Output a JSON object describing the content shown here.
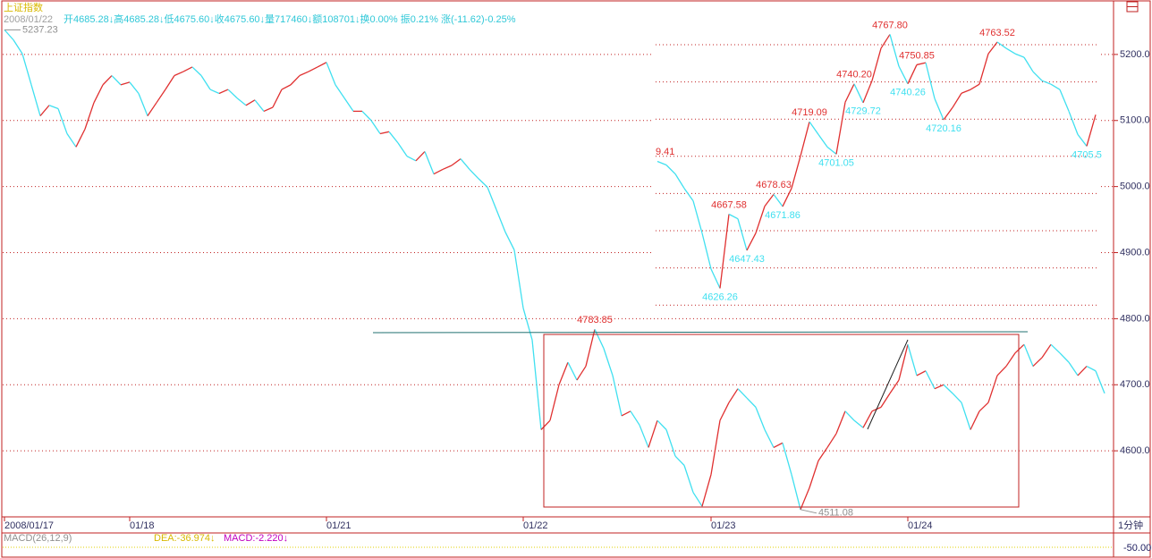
{
  "chart_data": [
    {
      "type": "line",
      "title": "上证指数",
      "header_date": "2008/01/22",
      "header_quote": "开4685.28↓高4685.28↓低4675.60↓收4675.60↓量717460↓额108701↓换0.00% 振0.21% 涨(-11.62)-0.25%",
      "period": "1分钟",
      "up_color": "#e03030",
      "down_color": "#40e0f0",
      "extreme_color": "#909090",
      "grid": true,
      "categories": [
        "2008/01/17",
        null,
        null,
        null,
        null,
        null,
        null,
        null,
        null,
        null,
        null,
        null,
        null,
        null,
        "01/18",
        null,
        null,
        null,
        null,
        null,
        null,
        null,
        null,
        null,
        null,
        null,
        null,
        null,
        null,
        null,
        null,
        null,
        null,
        null,
        null,
        null,
        "01/21",
        null,
        null,
        null,
        null,
        null,
        null,
        null,
        null,
        null,
        null,
        null,
        null,
        null,
        null,
        null,
        null,
        null,
        null,
        null,
        null,
        null,
        "01/22",
        null,
        null,
        null,
        null,
        null,
        null,
        null,
        null,
        null,
        null,
        null,
        null,
        null,
        null,
        null,
        null,
        null,
        null,
        null,
        null,
        "01/23",
        null,
        null,
        null,
        null,
        null,
        null,
        null,
        null,
        null,
        null,
        null,
        null,
        null,
        null,
        null,
        null,
        null,
        null,
        null,
        null,
        null,
        "01/24",
        null,
        null,
        null,
        null,
        null,
        null,
        null,
        null,
        null,
        null,
        null,
        null,
        null,
        null,
        null,
        null,
        null,
        null,
        null,
        null,
        null,
        null
      ],
      "values": [
        5237.23,
        5222,
        5201,
        5154,
        5107,
        5123,
        5118,
        5080,
        5060,
        5087,
        5127,
        5154,
        5168,
        5154,
        5158,
        5141,
        5107,
        5127,
        5147,
        5168,
        5174,
        5181,
        5168,
        5147,
        5141,
        5147,
        5134,
        5123,
        5131,
        5114,
        5120,
        5147,
        5154,
        5168,
        5174,
        5181,
        5188,
        5154,
        5134,
        5114,
        5114,
        5100,
        5080,
        5083,
        5066,
        5046,
        5039,
        5053,
        5019,
        5026,
        5032,
        5042,
        5026,
        5012,
        4999,
        4965,
        4931,
        4904,
        4816,
        4768,
        4632,
        4646,
        4700,
        4734,
        4707,
        4728,
        4783.85,
        4755,
        4714,
        4653,
        4660,
        4639,
        4605,
        4646,
        4632,
        4592,
        4578,
        4537,
        4516,
        4564,
        4646,
        4673,
        4694,
        4680,
        4666,
        4632,
        4605,
        4612,
        4564,
        4511.08,
        4544,
        4585,
        4605,
        4626,
        4660,
        4646,
        4635,
        4660,
        4666,
        4687,
        4707,
        4761,
        4714,
        4721,
        4694,
        4700,
        4687,
        4673,
        4632,
        4660,
        4673,
        4714,
        4728,
        4748,
        4761,
        4728,
        4741,
        4761,
        4748,
        4734,
        4714,
        4728,
        4721,
        4687
      ],
      "value_labels": [
        "5237.23",
        null,
        null,
        null,
        null,
        null,
        null,
        null,
        null,
        null,
        null,
        null,
        null,
        null,
        null,
        null,
        null,
        null,
        null,
        null,
        null,
        null,
        null,
        null,
        null,
        null,
        null,
        null,
        null,
        null,
        null,
        null,
        null,
        null,
        null,
        null,
        null,
        null,
        null,
        null,
        null,
        null,
        null,
        null,
        null,
        null,
        null,
        null,
        null,
        null,
        null,
        null,
        null,
        null,
        null,
        null,
        null,
        null,
        null,
        null,
        null,
        null,
        null,
        null,
        null,
        null,
        "4783.85",
        null,
        null,
        null,
        null,
        null,
        null,
        null,
        null,
        null,
        null,
        null,
        null,
        null,
        null,
        null,
        null,
        null,
        null,
        null,
        null,
        null,
        null,
        "4511.08",
        null,
        null,
        null,
        null,
        null,
        null,
        null,
        null,
        null,
        null,
        null,
        null,
        null,
        null,
        null,
        null,
        null,
        null,
        null,
        null,
        null,
        null,
        null,
        null,
        null,
        null,
        null,
        null,
        null,
        null,
        null,
        null,
        null,
        null
      ],
      "ylim": [
        4500,
        5277
      ],
      "yticks": [
        {
          "value": 4600,
          "label": "4600.0"
        },
        {
          "value": 4700,
          "label": "4700.0"
        },
        {
          "value": 4800,
          "label": "4800.0"
        },
        {
          "value": 4900,
          "label": "4900.0"
        },
        {
          "value": 5000,
          "label": "5000.0"
        },
        {
          "value": 5100,
          "label": "5100.0"
        },
        {
          "value": 5200,
          "label": "5200.0"
        }
      ],
      "indicator": {
        "name": "MACD(26,12,9)",
        "dea": "DEA:-36.974↓",
        "macd": "MACD:-2.220↓",
        "axis_label": "-50.00"
      }
    },
    {
      "type": "line",
      "up_color": "#e03030",
      "down_color": "#40e0f0",
      "annotation": "9.41",
      "values": [
        4697,
        4695,
        4690,
        4682,
        4675,
        4657,
        4637,
        4626.26,
        4667.58,
        4665,
        4647.43,
        4657,
        4672,
        4678.63,
        4671.86,
        4682,
        4700,
        4719.09,
        4712,
        4705,
        4701.05,
        4730,
        4740.2,
        4729.72,
        4742,
        4760,
        4767.8,
        4750,
        4740.26,
        4750.85,
        4752,
        4732,
        4720.16,
        4727,
        4735,
        4737,
        4740,
        4757,
        4763.52,
        4760,
        4757,
        4755,
        4747,
        4742,
        4740,
        4737,
        4725,
        4712,
        4705.5,
        4723
      ],
      "value_labels": [
        null,
        null,
        null,
        null,
        null,
        null,
        null,
        "4626.26",
        "4667.58",
        null,
        "4647.43",
        null,
        null,
        "4678.63",
        "4671.86",
        null,
        null,
        "4719.09",
        null,
        null,
        "4701.05",
        null,
        "4740.20",
        "4729.72",
        null,
        null,
        "4767.80",
        null,
        "4740.26",
        "4750.85",
        null,
        null,
        "4720.16",
        null,
        null,
        null,
        null,
        null,
        "4763.52",
        null,
        null,
        null,
        null,
        null,
        null,
        null,
        null,
        null,
        "4705.5",
        null
      ],
      "ylim": [
        4615,
        4772
      ]
    }
  ]
}
